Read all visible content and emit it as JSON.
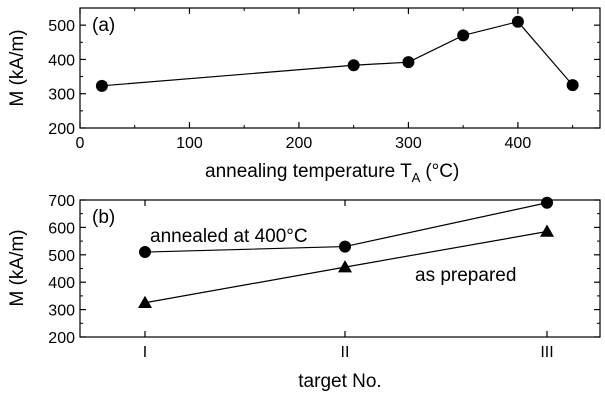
{
  "chart_data": [
    {
      "type": "line",
      "panel_label": "(a)",
      "xlabel": "annealing temperature T",
      "xlabel_subscript": "A",
      "xlabel_unit": "(°C)",
      "ylabel": "M (kA/m)",
      "xlim": [
        0,
        475
      ],
      "ylim": [
        200,
        550
      ],
      "xticks": [
        0,
        100,
        200,
        300,
        400
      ],
      "xtick_labels": [
        "0",
        "100",
        "200",
        "300",
        "400"
      ],
      "yticks": [
        200,
        300,
        400,
        500
      ],
      "ytick_labels": [
        "200",
        "300",
        "400",
        "500"
      ],
      "grid": false,
      "series": [
        {
          "marker": "circle",
          "x": [
            20,
            250,
            300,
            350,
            400,
            450
          ],
          "y": [
            323,
            383,
            392,
            470,
            510,
            325
          ]
        }
      ]
    },
    {
      "type": "line",
      "panel_label": "(b)",
      "xlabel": "target No.",
      "ylabel": "M (kA/m)",
      "categories": [
        "I",
        "II",
        "III"
      ],
      "ylim": [
        200,
        700
      ],
      "yticks": [
        200,
        300,
        400,
        500,
        600,
        700
      ],
      "ytick_labels": [
        "200",
        "300",
        "400",
        "500",
        "600",
        "700"
      ],
      "grid": false,
      "series": [
        {
          "name": "annealed at 400°C",
          "marker": "circle",
          "values": [
            510,
            530,
            690
          ]
        },
        {
          "name": "as prepared",
          "marker": "triangle",
          "values": [
            325,
            455,
            585
          ]
        }
      ]
    }
  ]
}
